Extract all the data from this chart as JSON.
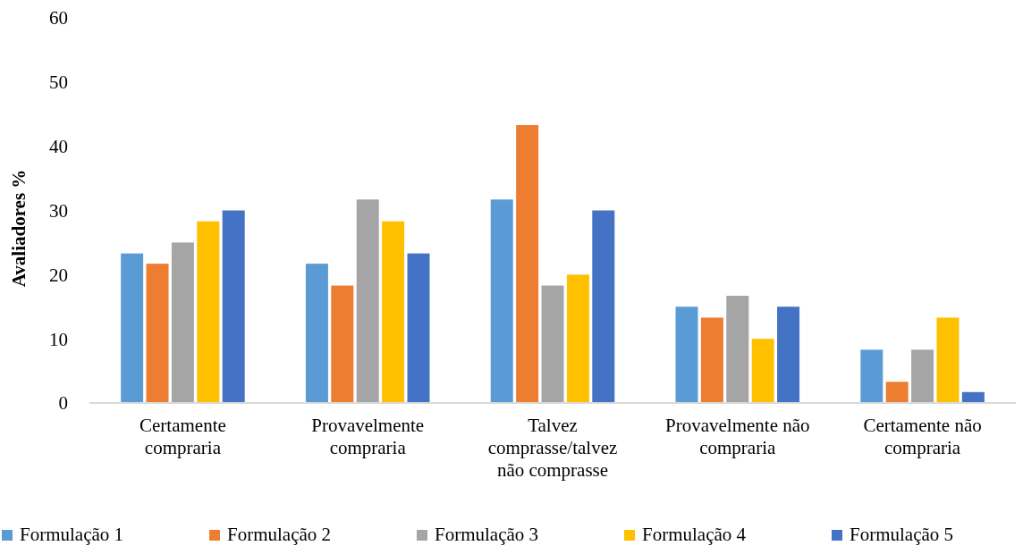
{
  "chart_data": {
    "type": "bar",
    "ylabel": "Avaliadores %",
    "categories": [
      "Certamente compraria",
      "Provavelmente compraria",
      "Talvez comprasse/talvez não comprasse",
      "Provavelmente não compraria",
      "Certamente não compraria"
    ],
    "series": [
      {
        "name": "Formulação 1",
        "color": "#5b9bd5",
        "values": [
          23.3,
          21.7,
          31.7,
          15,
          8.3
        ]
      },
      {
        "name": "Formulação 2",
        "color": "#ed7d31",
        "values": [
          21.7,
          18.3,
          43.3,
          13.3,
          3.3
        ]
      },
      {
        "name": "Formulação 3",
        "color": "#a5a5a5",
        "values": [
          25,
          31.7,
          18.3,
          16.7,
          8.3
        ]
      },
      {
        "name": "Formulação 4",
        "color": "#ffc000",
        "values": [
          28.3,
          28.3,
          20,
          10,
          13.3
        ]
      },
      {
        "name": "Formulação 5",
        "color": "#4472c4",
        "values": [
          30,
          23.3,
          30,
          15,
          1.7
        ]
      }
    ],
    "ylim": [
      0,
      60
    ],
    "yticks": [
      0,
      10,
      20,
      30,
      40,
      50,
      60
    ],
    "grid": false,
    "legend": "bottom"
  }
}
